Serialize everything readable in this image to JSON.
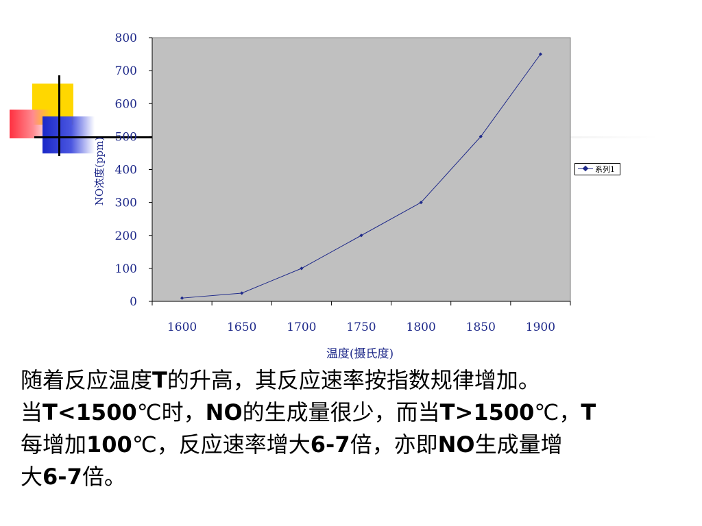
{
  "colors": {
    "plot_bg": "#c0c0c0",
    "series": "#1f2a8a",
    "deco_yellow": "#ffd700",
    "deco_red": "#ff3040",
    "deco_blue": "#1a28c8"
  },
  "chart_data": {
    "type": "line",
    "x": [
      1600,
      1650,
      1700,
      1750,
      1800,
      1850,
      1900
    ],
    "series": [
      {
        "name": "系列1",
        "values": [
          10,
          25,
          100,
          200,
          300,
          500,
          750
        ]
      }
    ],
    "xlabel": "温度(摄氏度)",
    "ylabel": "NO浓度(ppm)",
    "ylim": [
      0,
      800
    ],
    "yticks": [
      0,
      100,
      200,
      300,
      400,
      500,
      600,
      700,
      800
    ],
    "xticks": [
      1600,
      1650,
      1700,
      1750,
      1800,
      1850,
      1900
    ],
    "grid": false,
    "legend_position": "right",
    "marker": "diamond"
  },
  "text": {
    "line1": [
      {
        "t": "随着反应温度"
      },
      {
        "t": "T",
        "b": true
      },
      {
        "t": "的升高，其反应速率按指数规律增加。"
      }
    ],
    "line2": [
      {
        "t": "当"
      },
      {
        "t": "T<1500",
        "b": true
      },
      {
        "t": "℃时，"
      },
      {
        "t": "NO",
        "b": true
      },
      {
        "t": "的生成量很少，而当"
      },
      {
        "t": "T>1500",
        "b": true
      },
      {
        "t": "℃，"
      },
      {
        "t": "T",
        "b": true
      }
    ],
    "line3": [
      {
        "t": "每增加"
      },
      {
        "t": "100",
        "b": true
      },
      {
        "t": "℃，反应速率增大"
      },
      {
        "t": "6-7",
        "b": true
      },
      {
        "t": "倍，亦即"
      },
      {
        "t": "NO",
        "b": true
      },
      {
        "t": "生成量增"
      }
    ],
    "line4": [
      {
        "t": "大"
      },
      {
        "t": "6-7",
        "b": true
      },
      {
        "t": "倍。"
      }
    ]
  }
}
